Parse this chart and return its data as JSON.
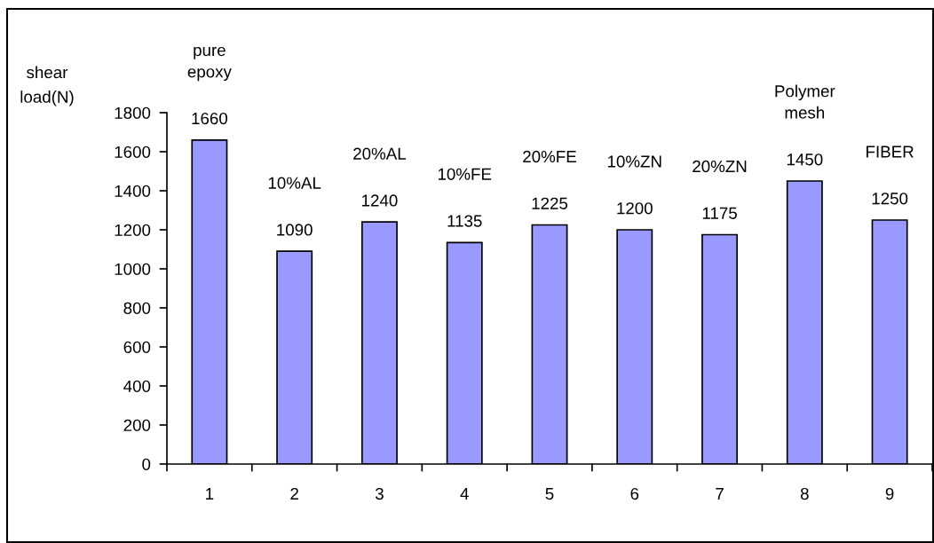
{
  "chart_data": {
    "type": "bar",
    "ylabel": "shear\nload(N)",
    "categories": [
      "1",
      "2",
      "3",
      "4",
      "5",
      "6",
      "7",
      "8",
      "9"
    ],
    "values": [
      1660,
      1090,
      1240,
      1135,
      1225,
      1200,
      1175,
      1450,
      1250
    ],
    "color": "#9999ff",
    "ylim": [
      0,
      1800
    ],
    "yticks": [
      0,
      200,
      400,
      600,
      800,
      1000,
      1200,
      1400,
      1600,
      1800
    ],
    "grid": false,
    "data_labels": true,
    "annotations": [
      "pure\nepoxy",
      "10%AL",
      "20%AL",
      "10%FE",
      "20%FE",
      "10%ZN",
      "20%ZN",
      "Polymer\nmesh",
      "FIBER"
    ]
  }
}
